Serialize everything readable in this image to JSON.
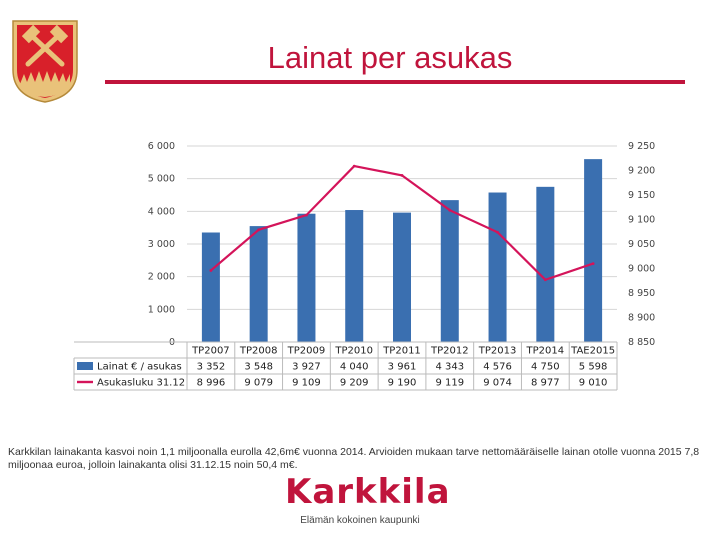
{
  "header": {
    "title": "Lainat per asukas"
  },
  "chart_data": {
    "type": "bar+line",
    "categories": [
      "TP2007",
      "TP2008",
      "TP2009",
      "TP2010",
      "TP2011",
      "TP2012",
      "TP2013",
      "TP2014",
      "TAE2015"
    ],
    "series": [
      {
        "name": "Lainat € / asukas",
        "type": "bar",
        "axis": "left",
        "color": "#3a6fb0",
        "values": [
          3352,
          3548,
          3927,
          4040,
          3961,
          4343,
          4576,
          4750,
          5598
        ],
        "labels": [
          "3 352",
          "3 548",
          "3 927",
          "4 040",
          "3 961",
          "4 343",
          "4 576",
          "4 750",
          "5 598"
        ]
      },
      {
        "name": "Asukasluku 31.12",
        "type": "line",
        "axis": "right",
        "color": "#d4145a",
        "values": [
          8996,
          9079,
          9109,
          9209,
          9190,
          9119,
          9074,
          8977,
          9010
        ],
        "labels": [
          "8 996",
          "9 079",
          "9 109",
          "9 209",
          "9 190",
          "9 119",
          "9 074",
          "8 977",
          "9 010"
        ]
      }
    ],
    "y_left": {
      "min": 0,
      "max": 6000,
      "ticks": [
        "0",
        "1 000",
        "2 000",
        "3 000",
        "4 000",
        "5 000",
        "6 000"
      ]
    },
    "y_right": {
      "min": 8850,
      "max": 9250,
      "ticks": [
        "8 850",
        "8 900",
        "8 950",
        "9 000",
        "9 050",
        "9 100",
        "9 150",
        "9 200",
        "9 250"
      ]
    },
    "gridlines": true,
    "legend": "data-table-bottom"
  },
  "caption": "Karkkilan lainakanta kasvoi noin 1,1 miljoonalla eurolla 42,6m€ vuonna 2014. Arvioiden mukaan tarve nettomääräiselle lainan otolle vuonna 2015 7,8 miljoonaa euroa, jolloin lainakanta olisi 31.12.15 noin 50,4 m€.",
  "logo": {
    "name": "Karkkila",
    "tagline": "Elämän kokoinen kaupunki"
  },
  "colors": {
    "accent": "#c0143c",
    "bar": "#3a6fb0",
    "line": "#d4145a",
    "crest_bg": "#d8202a",
    "crest_gold": "#e9c27a"
  }
}
